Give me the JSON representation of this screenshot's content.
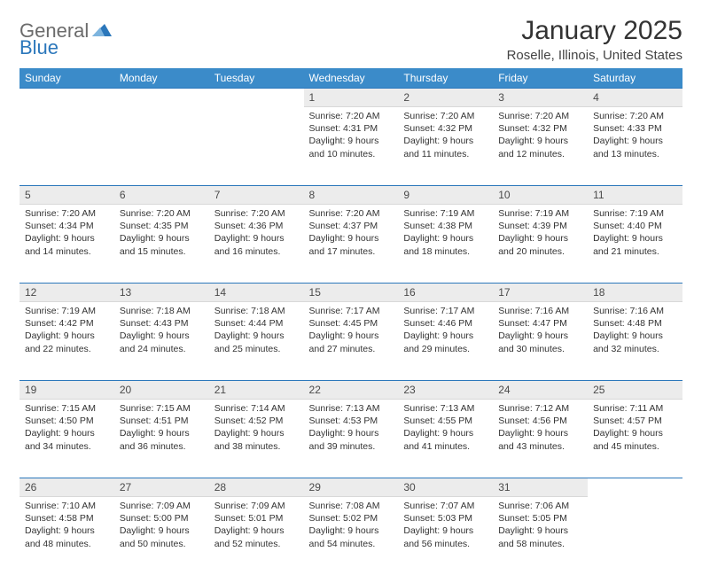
{
  "brand": {
    "part1": "General",
    "part2": "Blue"
  },
  "title": "January 2025",
  "location": "Roselle, Illinois, United States",
  "colors": {
    "header_bg": "#3b8bc9",
    "header_text": "#ffffff",
    "daynum_bg": "#ececec",
    "border_accent": "#2b77bb",
    "logo_gray": "#6b6b6b",
    "logo_blue": "#2b77bb"
  },
  "dayNames": [
    "Sunday",
    "Monday",
    "Tuesday",
    "Wednesday",
    "Thursday",
    "Friday",
    "Saturday"
  ],
  "weeks": [
    [
      null,
      null,
      null,
      {
        "n": "1",
        "sr": "7:20 AM",
        "ss": "4:31 PM",
        "dl": "9 hours and 10 minutes."
      },
      {
        "n": "2",
        "sr": "7:20 AM",
        "ss": "4:32 PM",
        "dl": "9 hours and 11 minutes."
      },
      {
        "n": "3",
        "sr": "7:20 AM",
        "ss": "4:32 PM",
        "dl": "9 hours and 12 minutes."
      },
      {
        "n": "4",
        "sr": "7:20 AM",
        "ss": "4:33 PM",
        "dl": "9 hours and 13 minutes."
      }
    ],
    [
      {
        "n": "5",
        "sr": "7:20 AM",
        "ss": "4:34 PM",
        "dl": "9 hours and 14 minutes."
      },
      {
        "n": "6",
        "sr": "7:20 AM",
        "ss": "4:35 PM",
        "dl": "9 hours and 15 minutes."
      },
      {
        "n": "7",
        "sr": "7:20 AM",
        "ss": "4:36 PM",
        "dl": "9 hours and 16 minutes."
      },
      {
        "n": "8",
        "sr": "7:20 AM",
        "ss": "4:37 PM",
        "dl": "9 hours and 17 minutes."
      },
      {
        "n": "9",
        "sr": "7:19 AM",
        "ss": "4:38 PM",
        "dl": "9 hours and 18 minutes."
      },
      {
        "n": "10",
        "sr": "7:19 AM",
        "ss": "4:39 PM",
        "dl": "9 hours and 20 minutes."
      },
      {
        "n": "11",
        "sr": "7:19 AM",
        "ss": "4:40 PM",
        "dl": "9 hours and 21 minutes."
      }
    ],
    [
      {
        "n": "12",
        "sr": "7:19 AM",
        "ss": "4:42 PM",
        "dl": "9 hours and 22 minutes."
      },
      {
        "n": "13",
        "sr": "7:18 AM",
        "ss": "4:43 PM",
        "dl": "9 hours and 24 minutes."
      },
      {
        "n": "14",
        "sr": "7:18 AM",
        "ss": "4:44 PM",
        "dl": "9 hours and 25 minutes."
      },
      {
        "n": "15",
        "sr": "7:17 AM",
        "ss": "4:45 PM",
        "dl": "9 hours and 27 minutes."
      },
      {
        "n": "16",
        "sr": "7:17 AM",
        "ss": "4:46 PM",
        "dl": "9 hours and 29 minutes."
      },
      {
        "n": "17",
        "sr": "7:16 AM",
        "ss": "4:47 PM",
        "dl": "9 hours and 30 minutes."
      },
      {
        "n": "18",
        "sr": "7:16 AM",
        "ss": "4:48 PM",
        "dl": "9 hours and 32 minutes."
      }
    ],
    [
      {
        "n": "19",
        "sr": "7:15 AM",
        "ss": "4:50 PM",
        "dl": "9 hours and 34 minutes."
      },
      {
        "n": "20",
        "sr": "7:15 AM",
        "ss": "4:51 PM",
        "dl": "9 hours and 36 minutes."
      },
      {
        "n": "21",
        "sr": "7:14 AM",
        "ss": "4:52 PM",
        "dl": "9 hours and 38 minutes."
      },
      {
        "n": "22",
        "sr": "7:13 AM",
        "ss": "4:53 PM",
        "dl": "9 hours and 39 minutes."
      },
      {
        "n": "23",
        "sr": "7:13 AM",
        "ss": "4:55 PM",
        "dl": "9 hours and 41 minutes."
      },
      {
        "n": "24",
        "sr": "7:12 AM",
        "ss": "4:56 PM",
        "dl": "9 hours and 43 minutes."
      },
      {
        "n": "25",
        "sr": "7:11 AM",
        "ss": "4:57 PM",
        "dl": "9 hours and 45 minutes."
      }
    ],
    [
      {
        "n": "26",
        "sr": "7:10 AM",
        "ss": "4:58 PM",
        "dl": "9 hours and 48 minutes."
      },
      {
        "n": "27",
        "sr": "7:09 AM",
        "ss": "5:00 PM",
        "dl": "9 hours and 50 minutes."
      },
      {
        "n": "28",
        "sr": "7:09 AM",
        "ss": "5:01 PM",
        "dl": "9 hours and 52 minutes."
      },
      {
        "n": "29",
        "sr": "7:08 AM",
        "ss": "5:02 PM",
        "dl": "9 hours and 54 minutes."
      },
      {
        "n": "30",
        "sr": "7:07 AM",
        "ss": "5:03 PM",
        "dl": "9 hours and 56 minutes."
      },
      {
        "n": "31",
        "sr": "7:06 AM",
        "ss": "5:05 PM",
        "dl": "9 hours and 58 minutes."
      },
      null
    ]
  ]
}
